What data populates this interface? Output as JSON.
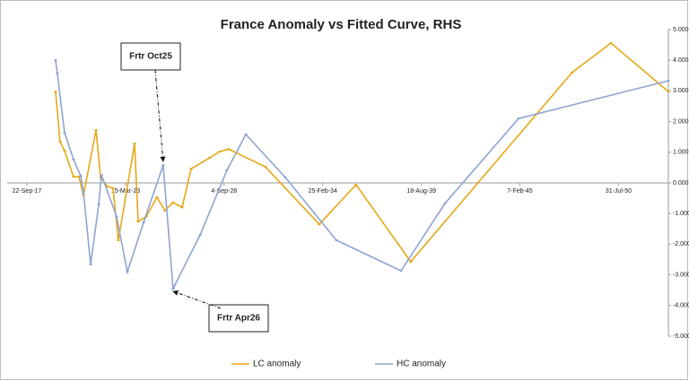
{
  "chart_data": {
    "type": "line",
    "title": "France Anomaly vs Fitted Curve, RHS",
    "xlim": [
      2017.72,
      2053.35
    ],
    "xticks": [
      {
        "value": 2017.72,
        "label": "22-Sep-17"
      },
      {
        "value": 2023.2,
        "label": "15-Mar-23"
      },
      {
        "value": 2028.67,
        "label": "4-Sep-28"
      },
      {
        "value": 2034.15,
        "label": "25-Feb-34"
      },
      {
        "value": 2039.63,
        "label": "18-Aug-39"
      },
      {
        "value": 2045.1,
        "label": "7-Feb-45"
      },
      {
        "value": 2050.58,
        "label": "31-Jul-50"
      }
    ],
    "ylim": [
      -5,
      5
    ],
    "yticks": [
      {
        "value": 5,
        "label": "5.000"
      },
      {
        "value": 4,
        "label": "4.000"
      },
      {
        "value": 3,
        "label": "3.000"
      },
      {
        "value": 2,
        "label": "2.000"
      },
      {
        "value": 1,
        "label": "1.000"
      },
      {
        "value": 0,
        "label": "0.000"
      },
      {
        "value": -1,
        "label": "-1.000"
      },
      {
        "value": -2,
        "label": "-2.000"
      },
      {
        "value": -3,
        "label": "-3.000"
      },
      {
        "value": -4,
        "label": "-4.000"
      },
      {
        "value": -5,
        "label": "-5.000"
      }
    ],
    "y_axis_side": "right",
    "grid": false,
    "legend": "bottom",
    "series": [
      {
        "name": "LC anomaly",
        "color": "#e6a817",
        "x": [
          2019.31,
          2019.56,
          2019.81,
          2020.31,
          2020.61,
          2020.86,
          2021.56,
          2021.81,
          2022.2,
          2022.5,
          2022.8,
          2023.7,
          2023.9,
          2024.35,
          2024.94,
          2025.39,
          2025.84,
          2026.34,
          2026.84,
          2027.88,
          2028.43,
          2028.93,
          2030.97,
          2033.96,
          2036.0,
          2039.04,
          2048.0,
          2050.16,
          2053.35
        ],
        "values": [
          2.98,
          1.35,
          1.05,
          0.2,
          0.2,
          -0.4,
          1.72,
          0.18,
          -0.12,
          -0.17,
          -1.87,
          1.28,
          -1.26,
          -1.1,
          -0.47,
          -0.9,
          -0.64,
          -0.8,
          0.46,
          0.82,
          1.02,
          1.1,
          0.52,
          -1.35,
          -0.06,
          -2.57,
          3.6,
          4.56,
          2.98
        ]
      },
      {
        "name": "HC anomaly",
        "color": "#8ea4d2",
        "x": [
          2019.31,
          2019.41,
          2019.81,
          2020.31,
          2020.71,
          2020.86,
          2021.26,
          2021.71,
          2021.86,
          2022.7,
          2023.3,
          2024.2,
          2025.29,
          2025.84,
          2027.34,
          2028.83,
          2029.88,
          2032.07,
          2034.91,
          2038.5,
          2040.94,
          2045.03,
          2053.35
        ],
        "values": [
          4.0,
          3.57,
          1.64,
          0.76,
          0.23,
          -0.3,
          -2.66,
          -0.7,
          0.26,
          -1.1,
          -2.9,
          -1.29,
          0.58,
          -3.45,
          -1.7,
          0.41,
          1.58,
          0.18,
          -1.87,
          -2.87,
          -0.67,
          2.1,
          3.33
        ]
      }
    ],
    "annotations": [
      {
        "text": "Frtr Oct25",
        "x": 2025.29,
        "y": 0.58
      },
      {
        "text": "Frtr Apr26",
        "x": 2025.84,
        "y": -3.45
      }
    ]
  }
}
